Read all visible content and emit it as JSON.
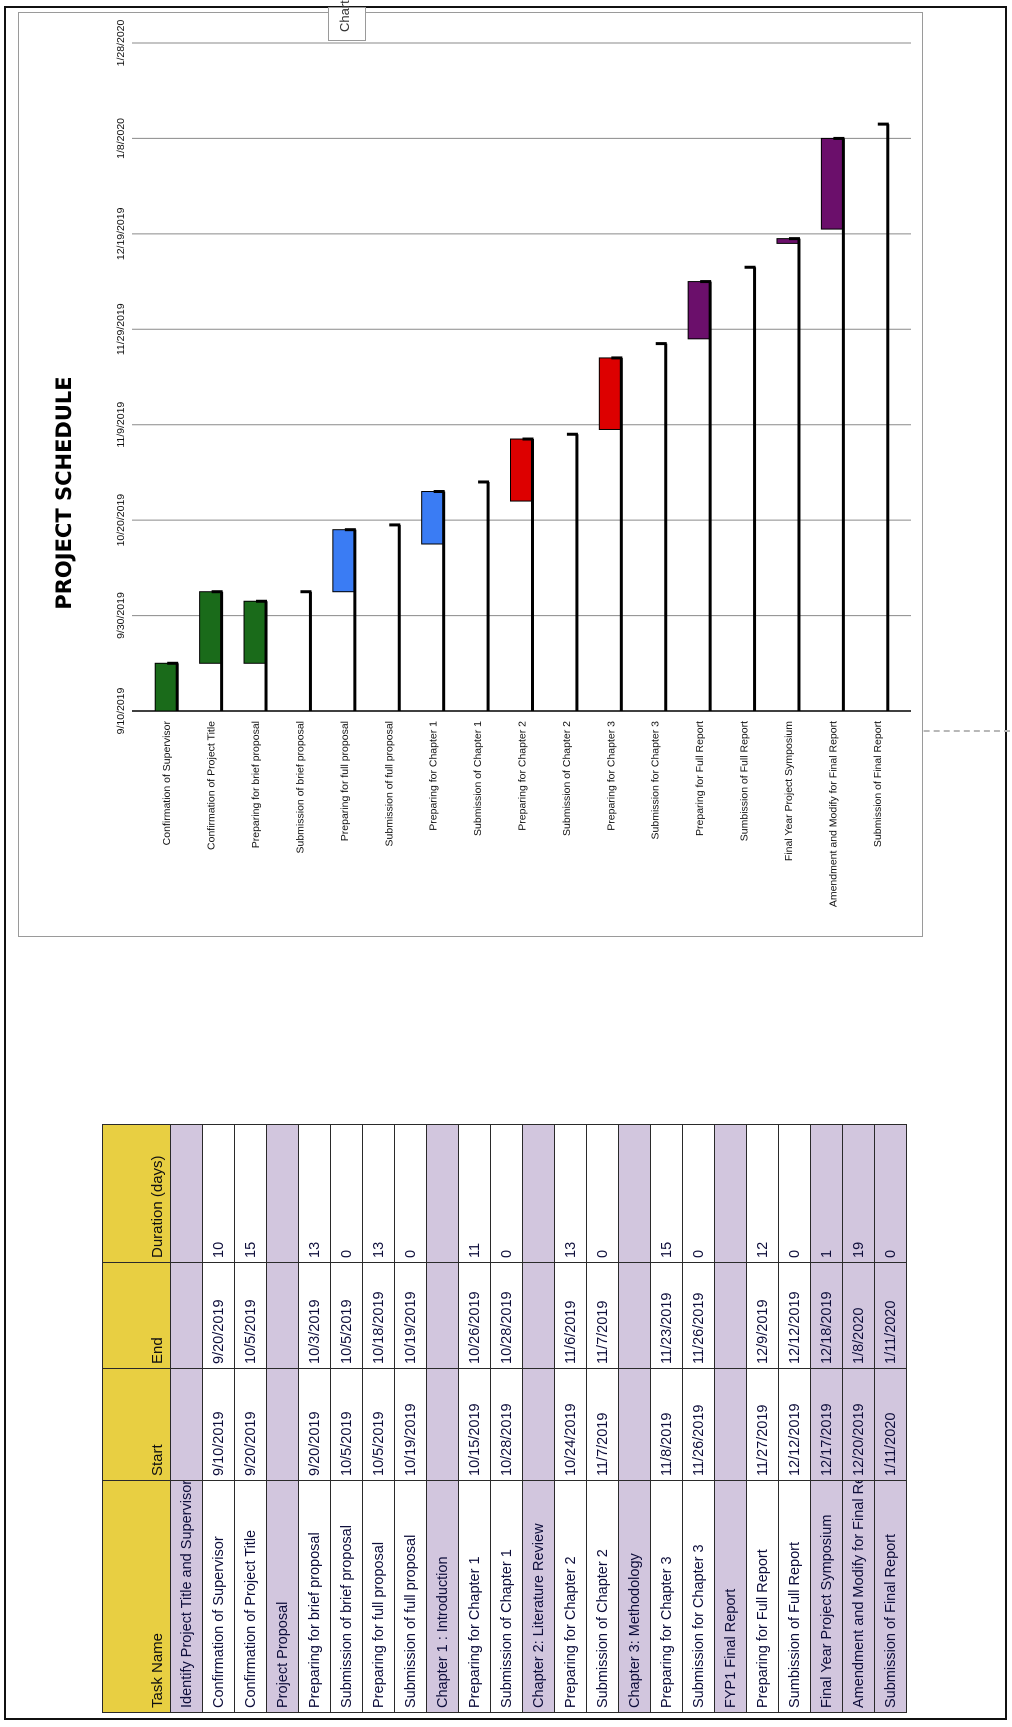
{
  "table": {
    "headers": {
      "name": "Task Name",
      "start": "Start",
      "end": "End",
      "duration": "Duration (days)"
    },
    "rows": [
      {
        "type": "group",
        "name": "Identify Project Title and Supervisor"
      },
      {
        "type": "task",
        "name": "Confirmation of Supervisor",
        "start": "9/10/2019",
        "end": "9/20/2019",
        "duration": "10"
      },
      {
        "type": "task",
        "name": "Confirmation of Project Title",
        "start": "9/20/2019",
        "end": "10/5/2019",
        "duration": "15"
      },
      {
        "type": "group",
        "name": "Project Proposal"
      },
      {
        "type": "task",
        "name": "Preparing for brief proposal",
        "start": "9/20/2019",
        "end": "10/3/2019",
        "duration": "13"
      },
      {
        "type": "task",
        "name": "Submission of brief proposal",
        "start": "10/5/2019",
        "end": "10/5/2019",
        "duration": "0"
      },
      {
        "type": "task",
        "name": "Preparing for full proposal",
        "start": "10/5/2019",
        "end": "10/18/2019",
        "duration": "13"
      },
      {
        "type": "task",
        "name": "Submission of full proposal",
        "start": "10/19/2019",
        "end": "10/19/2019",
        "duration": "0"
      },
      {
        "type": "group",
        "name": "Chapter 1 : Introduction"
      },
      {
        "type": "task",
        "name": "Preparing for Chapter 1",
        "start": "10/15/2019",
        "end": "10/26/2019",
        "duration": "11"
      },
      {
        "type": "task",
        "name": "Submission of Chapter 1",
        "start": "10/28/2019",
        "end": "10/28/2019",
        "duration": "0"
      },
      {
        "type": "group",
        "name": "Chapter 2: Literature Review"
      },
      {
        "type": "task",
        "name": "Preparing for Chapter 2",
        "start": "10/24/2019",
        "end": "11/6/2019",
        "duration": "13"
      },
      {
        "type": "task",
        "name": "Submission of Chapter 2",
        "start": "11/7/2019",
        "end": "11/7/2019",
        "duration": "0"
      },
      {
        "type": "group",
        "name": "Chapter 3: Methodology"
      },
      {
        "type": "task",
        "name": "Preparing for Chapter 3",
        "start": "11/8/2019",
        "end": "11/23/2019",
        "duration": "15"
      },
      {
        "type": "task",
        "name": "Submission for Chapter 3",
        "start": "11/26/2019",
        "end": "11/26/2019",
        "duration": "0"
      },
      {
        "type": "group",
        "name": "FYP1 Final Report"
      },
      {
        "type": "task",
        "name": "Preparing for Full Report",
        "start": "11/27/2019",
        "end": "12/9/2019",
        "duration": "12"
      },
      {
        "type": "task",
        "name": "Sumbission of Full Report",
        "start": "12/12/2019",
        "end": "12/12/2019",
        "duration": "0"
      },
      {
        "type": "group-task",
        "name": "Final Year Project Symposium",
        "start": "12/17/2019",
        "end": "12/18/2019",
        "duration": "1"
      },
      {
        "type": "group-task",
        "name": "Amendment and Modify for Final Report",
        "start": "12/20/2019",
        "end": "1/8/2020",
        "duration": "19"
      },
      {
        "type": "group-task",
        "name": "Submission of Final Report",
        "start": "1/11/2020",
        "end": "1/11/2020",
        "duration": "0"
      }
    ]
  },
  "chart_tab_label": "Chart",
  "chart_data": {
    "type": "bar",
    "orientation": "gantt",
    "title": "PROJECT SCHEDULE",
    "xlabel": "",
    "ylabel": "",
    "axis_ticks": [
      "9/10/2019",
      "9/30/2019",
      "10/20/2019",
      "11/9/2019",
      "11/29/2019",
      "12/19/2019",
      "1/8/2020",
      "1/28/2020"
    ],
    "axis_range": [
      "9/10/2019",
      "1/28/2020"
    ],
    "grid": true,
    "tasks": [
      {
        "name": "Confirmation of Supervisor",
        "start": "9/10/2019",
        "end": "9/20/2019",
        "color": "#1a6b1a"
      },
      {
        "name": "Confirmation of Project Title",
        "start": "9/20/2019",
        "end": "10/5/2019",
        "color": "#1a6b1a"
      },
      {
        "name": "Preparing for brief proposal",
        "start": "9/20/2019",
        "end": "10/3/2019",
        "color": "#1a6b1a"
      },
      {
        "name": "Submission of brief proposal",
        "start": "10/5/2019",
        "end": "10/5/2019",
        "color": "#000000"
      },
      {
        "name": "Preparing for full proposal",
        "start": "10/5/2019",
        "end": "10/18/2019",
        "color": "#3a7cf4"
      },
      {
        "name": "Submission of full proposal",
        "start": "10/19/2019",
        "end": "10/19/2019",
        "color": "#000000"
      },
      {
        "name": "Preparing for Chapter 1",
        "start": "10/15/2019",
        "end": "10/26/2019",
        "color": "#3a7cf4"
      },
      {
        "name": "Submission of Chapter 1",
        "start": "10/28/2019",
        "end": "10/28/2019",
        "color": "#000000"
      },
      {
        "name": "Preparing for Chapter 2",
        "start": "10/24/2019",
        "end": "11/6/2019",
        "color": "#dd0000"
      },
      {
        "name": "Submission of Chapter 2",
        "start": "11/7/2019",
        "end": "11/7/2019",
        "color": "#000000"
      },
      {
        "name": "Preparing for Chapter 3",
        "start": "11/8/2019",
        "end": "11/23/2019",
        "color": "#dd0000"
      },
      {
        "name": "Submission for Chapter 3",
        "start": "11/26/2019",
        "end": "11/26/2019",
        "color": "#000000"
      },
      {
        "name": "Preparing for Full Report",
        "start": "11/27/2019",
        "end": "12/9/2019",
        "color": "#6b0f6b"
      },
      {
        "name": "Sumbission of Full Report",
        "start": "12/12/2019",
        "end": "12/12/2019",
        "color": "#000000"
      },
      {
        "name": "Final Year Project Symposium",
        "start": "12/17/2019",
        "end": "12/18/2019",
        "color": "#6b0f6b"
      },
      {
        "name": "Amendment and Modify for Final Report",
        "start": "12/20/2019",
        "end": "1/8/2020",
        "color": "#6b0f6b"
      },
      {
        "name": "Submission of Final Report",
        "start": "1/11/2020",
        "end": "1/11/2020",
        "color": "#000000"
      }
    ]
  }
}
